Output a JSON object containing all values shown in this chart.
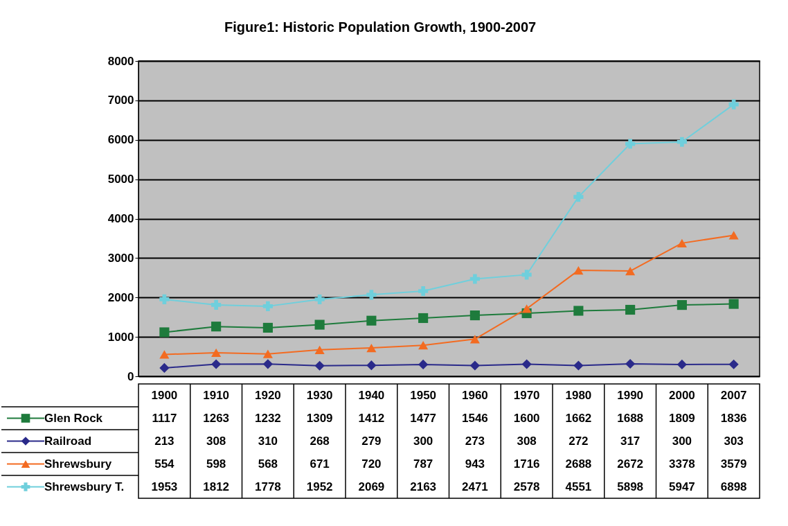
{
  "chart_data": {
    "type": "line",
    "title": "Figure1:  Historic Population Growth, 1900-2007",
    "categories": [
      "1900",
      "1910",
      "1920",
      "1930",
      "1940",
      "1950",
      "1960",
      "1970",
      "1980",
      "1990",
      "2000",
      "2007"
    ],
    "ylim": [
      0,
      8000
    ],
    "yticks": [
      0,
      1000,
      2000,
      3000,
      4000,
      5000,
      6000,
      7000,
      8000
    ],
    "grid": "y",
    "tick_labels": "y",
    "legend": "bottom",
    "data_labels": true,
    "series": [
      {
        "name": "Glen Rock",
        "color": "#1e7b3c",
        "marker": "square",
        "values": [
          1117,
          1263,
          1232,
          1309,
          1412,
          1477,
          1546,
          1600,
          1662,
          1688,
          1809,
          1836
        ]
      },
      {
        "name": "Railroad",
        "color": "#2a2a8a",
        "marker": "diamond",
        "values": [
          213,
          308,
          310,
          268,
          279,
          300,
          273,
          308,
          272,
          317,
          300,
          303
        ]
      },
      {
        "name": "Shrewsbury",
        "color": "#f36b21",
        "marker": "triangle",
        "values": [
          554,
          598,
          568,
          671,
          720,
          787,
          943,
          1716,
          2688,
          2672,
          3378,
          3579
        ]
      },
      {
        "name": "Shrewsbury T.",
        "color": "#6fcfdc",
        "marker": "cross",
        "values": [
          1953,
          1812,
          1778,
          1952,
          2069,
          2163,
          2471,
          2578,
          4551,
          5898,
          5947,
          6898
        ]
      }
    ]
  }
}
